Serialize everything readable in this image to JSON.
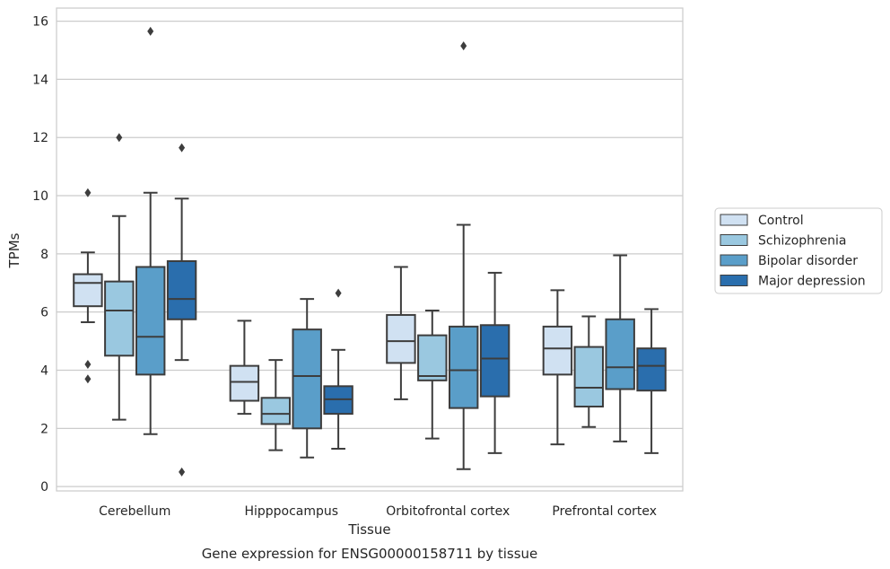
{
  "chart_data": {
    "type": "box",
    "xlabel": "Tissue",
    "ylabel": "TPMs",
    "caption": "Gene expression for ENSG00000158711 by tissue",
    "ylim": [
      -0.15,
      16.45
    ],
    "yticks": [
      0,
      2,
      4,
      6,
      8,
      10,
      12,
      14,
      16
    ],
    "grid": true,
    "legend_position": "right",
    "categories": [
      "Cerebellum",
      "Hipppocampus",
      "Orbitofrontal cortex",
      "Prefrontal cortex"
    ],
    "series": [
      {
        "name": "Control",
        "color": "#d0e1f2",
        "boxes": [
          {
            "whislo": 5.65,
            "q1": 6.2,
            "med": 7.0,
            "q3": 7.3,
            "whishi": 8.05,
            "fliers": [
              10.1,
              4.2,
              3.7
            ]
          },
          {
            "whislo": 2.5,
            "q1": 2.95,
            "med": 3.6,
            "q3": 4.15,
            "whishi": 5.7,
            "fliers": []
          },
          {
            "whislo": 3.0,
            "q1": 4.25,
            "med": 5.0,
            "q3": 5.9,
            "whishi": 7.55,
            "fliers": []
          },
          {
            "whislo": 1.45,
            "q1": 3.85,
            "med": 4.75,
            "q3": 5.5,
            "whishi": 6.75,
            "fliers": []
          }
        ]
      },
      {
        "name": "Schizophrenia",
        "color": "#9ac8e0",
        "boxes": [
          {
            "whislo": 2.3,
            "q1": 4.5,
            "med": 6.05,
            "q3": 7.05,
            "whishi": 9.3,
            "fliers": [
              12.0
            ]
          },
          {
            "whislo": 1.25,
            "q1": 2.15,
            "med": 2.5,
            "q3": 3.05,
            "whishi": 4.35,
            "fliers": []
          },
          {
            "whislo": 1.65,
            "q1": 3.65,
            "med": 3.8,
            "q3": 5.2,
            "whishi": 6.05,
            "fliers": []
          },
          {
            "whislo": 2.05,
            "q1": 2.75,
            "med": 3.4,
            "q3": 4.8,
            "whishi": 5.85,
            "fliers": []
          }
        ]
      },
      {
        "name": "Bipolar disorder",
        "color": "#5a9ec9",
        "boxes": [
          {
            "whislo": 1.8,
            "q1": 3.85,
            "med": 5.15,
            "q3": 7.55,
            "whishi": 10.1,
            "fliers": [
              15.65
            ]
          },
          {
            "whislo": 1.0,
            "q1": 2.0,
            "med": 3.8,
            "q3": 5.4,
            "whishi": 6.45,
            "fliers": []
          },
          {
            "whislo": 0.6,
            "q1": 2.7,
            "med": 4.0,
            "q3": 5.5,
            "whishi": 9.0,
            "fliers": [
              15.15
            ]
          },
          {
            "whislo": 1.55,
            "q1": 3.35,
            "med": 4.1,
            "q3": 5.75,
            "whishi": 7.95,
            "fliers": []
          }
        ]
      },
      {
        "name": "Major depression",
        "color": "#2a6ead",
        "boxes": [
          {
            "whislo": 4.35,
            "q1": 5.75,
            "med": 6.45,
            "q3": 7.75,
            "whishi": 9.9,
            "fliers": [
              11.65,
              0.5
            ]
          },
          {
            "whislo": 1.3,
            "q1": 2.5,
            "med": 3.0,
            "q3": 3.45,
            "whishi": 4.7,
            "fliers": [
              6.65
            ]
          },
          {
            "whislo": 1.15,
            "q1": 3.1,
            "med": 4.4,
            "q3": 5.55,
            "whishi": 7.35,
            "fliers": []
          },
          {
            "whislo": 1.15,
            "q1": 3.3,
            "med": 4.15,
            "q3": 4.75,
            "whishi": 6.1,
            "fliers": []
          }
        ]
      }
    ]
  }
}
